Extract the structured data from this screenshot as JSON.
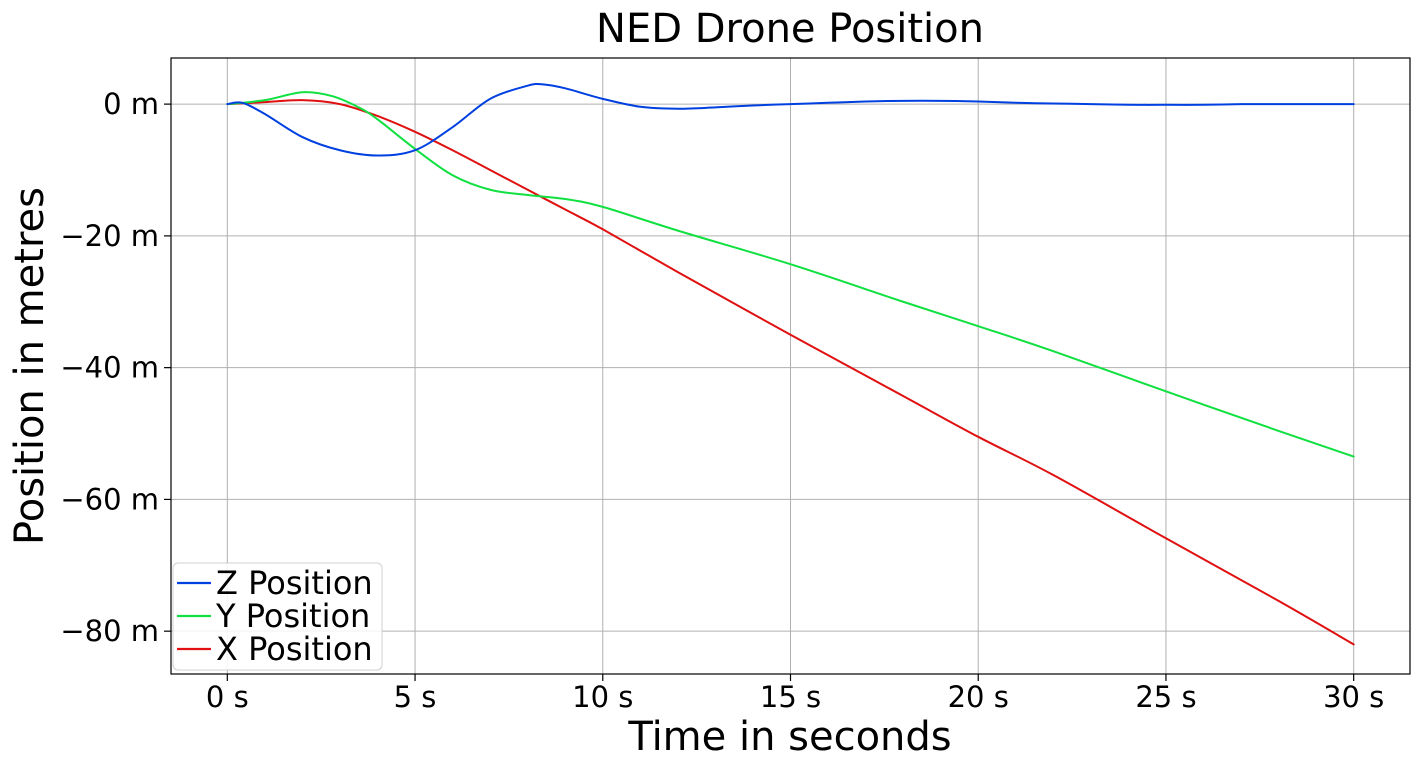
{
  "chart_data": {
    "type": "line",
    "title": "NED Drone Position",
    "xlabel": "Time in seconds",
    "ylabel": "Position in metres",
    "xlim": [
      -1.5,
      31.5
    ],
    "ylim": [
      -86.5,
      7
    ],
    "x_ticks": [
      0,
      5,
      10,
      15,
      20,
      25,
      30
    ],
    "x_tick_labels": [
      "0 s",
      "5 s",
      "10 s",
      "15 s",
      "20 s",
      "25 s",
      "30 s"
    ],
    "y_ticks": [
      0,
      -20,
      -40,
      -60,
      -80
    ],
    "y_tick_labels": [
      "0 m",
      "−20 m",
      "−40 m",
      "−60 m",
      "−80 m"
    ],
    "grid": true,
    "legend_position": "lower-left",
    "series": [
      {
        "name": "Z Position",
        "color": "#0040e0",
        "x": [
          0,
          0.4,
          1,
          2,
          3,
          4,
          5,
          6,
          7,
          8,
          8.4,
          9,
          10,
          11,
          12,
          13,
          14,
          15,
          16,
          17,
          18,
          19,
          20,
          21,
          22,
          23,
          24,
          25,
          26,
          27,
          28,
          29,
          30
        ],
        "y": [
          0,
          0.2,
          -1.5,
          -5,
          -7,
          -7.8,
          -7,
          -3.5,
          0.8,
          2.8,
          3,
          2.4,
          0.8,
          -0.4,
          -0.7,
          -0.5,
          -0.2,
          0,
          0.2,
          0.4,
          0.5,
          0.5,
          0.4,
          0.2,
          0.1,
          0,
          -0.1,
          -0.1,
          -0.1,
          0,
          0,
          0,
          0
        ]
      },
      {
        "name": "Y Position",
        "color": "#10e040",
        "x": [
          0,
          1,
          2,
          2.8,
          3.5,
          4,
          5,
          6,
          7,
          8,
          9,
          10,
          12,
          15,
          18,
          20,
          22,
          25,
          28,
          30
        ],
        "y": [
          0,
          0.6,
          1.8,
          1.2,
          -0.5,
          -2.3,
          -6.8,
          -10.8,
          -13,
          -13.8,
          -14.4,
          -15.6,
          -19.2,
          -24.3,
          -30,
          -33.7,
          -37.5,
          -43.6,
          -49.6,
          -53.5
        ]
      },
      {
        "name": "X Position",
        "color": "#e01010",
        "x": [
          0,
          1,
          2,
          3,
          4,
          5,
          6,
          7,
          8,
          9,
          10,
          12,
          15,
          18,
          20,
          22,
          25,
          28,
          30
        ],
        "y": [
          0,
          0.3,
          0.6,
          0,
          -1.8,
          -4.2,
          -7,
          -10,
          -13,
          -16,
          -19,
          -25.5,
          -35,
          -44.3,
          -50.5,
          -56.3,
          -65.9,
          -75.4,
          -82
        ]
      }
    ]
  }
}
